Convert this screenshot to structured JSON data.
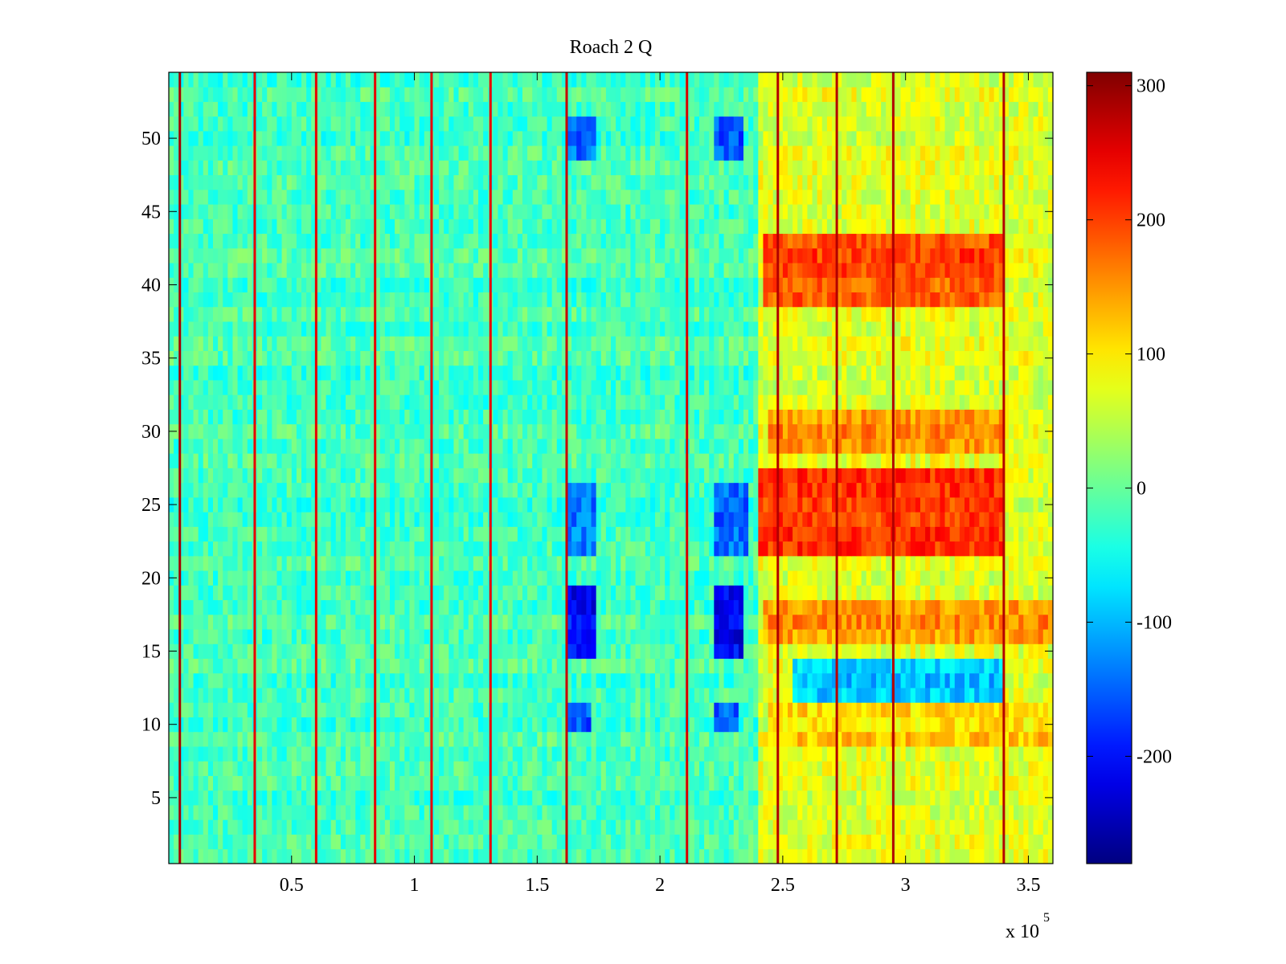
{
  "chart_data": {
    "type": "heatmap",
    "title": "Roach 2 Q",
    "xlabel": "",
    "ylabel": "",
    "x_exponent_label": "x 10",
    "x_exponent_power": "5",
    "xlim": [
      0,
      360000
    ],
    "ylim": [
      0.5,
      54.5
    ],
    "x_ticks": [
      50000,
      100000,
      150000,
      200000,
      250000,
      300000,
      350000
    ],
    "x_tick_labels": [
      "0.5",
      "1",
      "1.5",
      "2",
      "2.5",
      "3",
      "3.5"
    ],
    "y_ticks": [
      5,
      10,
      15,
      20,
      25,
      30,
      35,
      40,
      45,
      50
    ],
    "y_tick_labels": [
      "5",
      "10",
      "15",
      "20",
      "25",
      "30",
      "35",
      "40",
      "45",
      "50"
    ],
    "rows": 54,
    "colormap": "jet",
    "colorbar": {
      "clim": [
        -280,
        310
      ],
      "ticks": [
        300,
        200,
        100,
        0,
        -100,
        -200
      ],
      "tick_labels": [
        "300",
        "200",
        "100",
        "0",
        "-100",
        "-200"
      ]
    },
    "regions": [
      {
        "label": "baseline",
        "x": [
          0,
          240000
        ],
        "value_approx": -20
      },
      {
        "label": "elevated",
        "x": [
          240000,
          360000
        ],
        "value_approx": 70
      }
    ],
    "hot_bands": [
      {
        "rows": [
          39,
          43
        ],
        "x": [
          242000,
          340000
        ],
        "value_approx": 190
      },
      {
        "rows": [
          22,
          27
        ],
        "x": [
          241000,
          340000
        ],
        "value_approx": 210
      },
      {
        "rows": [
          29,
          31
        ],
        "x": [
          245000,
          340000
        ],
        "value_approx": 150
      },
      {
        "rows": [
          16,
          18
        ],
        "x": [
          242000,
          360000
        ],
        "value_approx": 150
      },
      {
        "rows": [
          9,
          11
        ],
        "x": [
          245000,
          360000
        ],
        "value_approx": 110
      }
    ],
    "cold_spots": [
      {
        "rows": [
          15,
          19
        ],
        "x": [
          163000,
          173000
        ],
        "value_approx": -210
      },
      {
        "rows": [
          15,
          19
        ],
        "x": [
          223000,
          233000
        ],
        "value_approx": -210
      },
      {
        "rows": [
          22,
          26
        ],
        "x": [
          162000,
          174000
        ],
        "value_approx": -130
      },
      {
        "rows": [
          22,
          26
        ],
        "x": [
          222000,
          235000
        ],
        "value_approx": -140
      },
      {
        "rows": [
          49,
          51
        ],
        "x": [
          163000,
          173000
        ],
        "value_approx": -150
      },
      {
        "rows": [
          49,
          51
        ],
        "x": [
          223000,
          233000
        ],
        "value_approx": -150
      },
      {
        "rows": [
          10,
          11
        ],
        "x": [
          163000,
          172000
        ],
        "value_approx": -150
      },
      {
        "rows": [
          10,
          11
        ],
        "x": [
          223000,
          232000
        ],
        "value_approx": -150
      },
      {
        "rows": [
          12,
          14
        ],
        "x": [
          255000,
          340000
        ],
        "value_approx": -90
      }
    ],
    "vertical_stripes": [
      {
        "x": 4500,
        "value_approx": 290
      },
      {
        "x": 35000,
        "value_approx": 250
      },
      {
        "x": 60000,
        "value_approx": 250
      },
      {
        "x": 84000,
        "value_approx": 250
      },
      {
        "x": 107000,
        "value_approx": 250
      },
      {
        "x": 131000,
        "value_approx": 250
      },
      {
        "x": 162000,
        "value_approx": 270
      },
      {
        "x": 211000,
        "value_approx": 260
      },
      {
        "x": 248000,
        "value_approx": 280
      },
      {
        "x": 272000,
        "value_approx": 280
      },
      {
        "x": 295000,
        "value_approx": 280
      },
      {
        "x": 340000,
        "value_approx": 280
      }
    ]
  }
}
